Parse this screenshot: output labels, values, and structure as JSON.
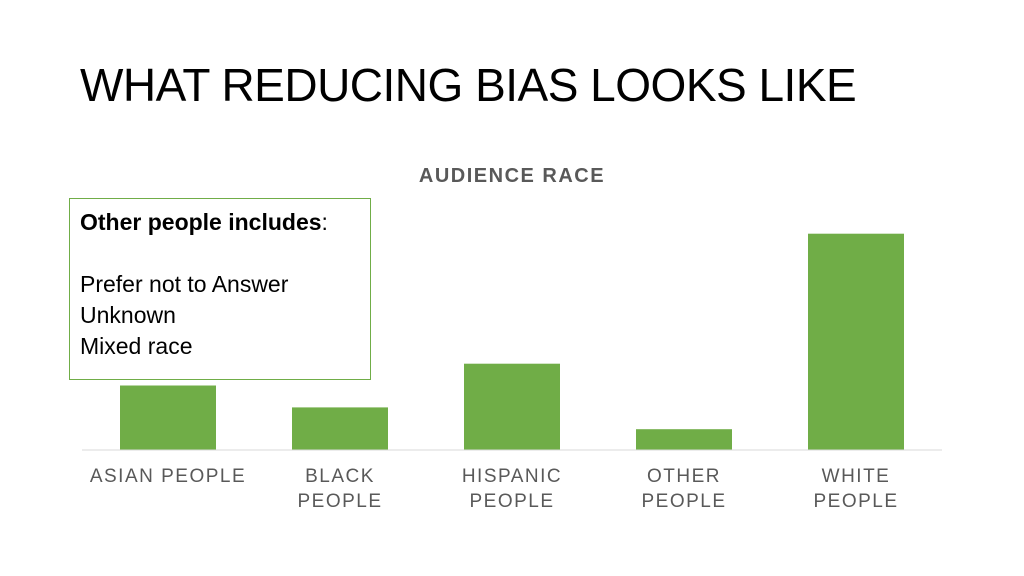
{
  "slide": {
    "title": "WHAT REDUCING BIAS LOOKS LIKE"
  },
  "note": {
    "heading": "Other people includes",
    "heading_suffix": ":",
    "items": [
      "Prefer not to Answer",
      "Unknown",
      "Mixed race"
    ]
  },
  "colors": {
    "bar": "#70AD47",
    "axis_text": "#595959",
    "note_border": "#70AD47"
  },
  "chart_data": {
    "type": "bar",
    "title": "AUDIENCE RACE",
    "categories": [
      [
        "ASIAN PEOPLE"
      ],
      [
        "BLACK",
        "PEOPLE"
      ],
      [
        "HISPANIC",
        "PEOPLE"
      ],
      [
        "OTHER",
        "PEOPLE"
      ],
      [
        "WHITE",
        "PEOPLE"
      ]
    ],
    "values": [
      62,
      41,
      83,
      20,
      208
    ],
    "ylim": [
      0,
      250
    ],
    "grid": false,
    "legend": false
  }
}
